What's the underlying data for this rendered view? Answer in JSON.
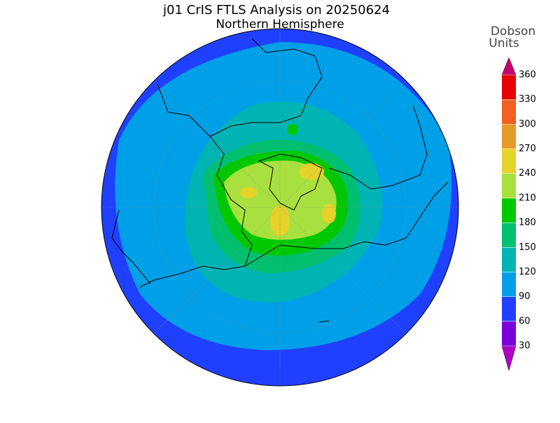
{
  "title": "j01 CrIS FTLS Analysis on 20250624",
  "subtitle": "Northern Hemisphere",
  "colorbar": {
    "label": [
      "Dobson",
      "Units"
    ],
    "ticks": [
      30,
      60,
      90,
      120,
      150,
      180,
      210,
      240,
      270,
      300,
      330,
      360
    ],
    "colors": [
      "#7a00dc",
      "#2040ff",
      "#00a0e8",
      "#00b4b4",
      "#00c070",
      "#00c800",
      "#a8e040",
      "#e6d22a",
      "#e69a28",
      "#f06020",
      "#e60000"
    ],
    "under_color": "#b000c8",
    "over_color": "#c8006e"
  }
}
